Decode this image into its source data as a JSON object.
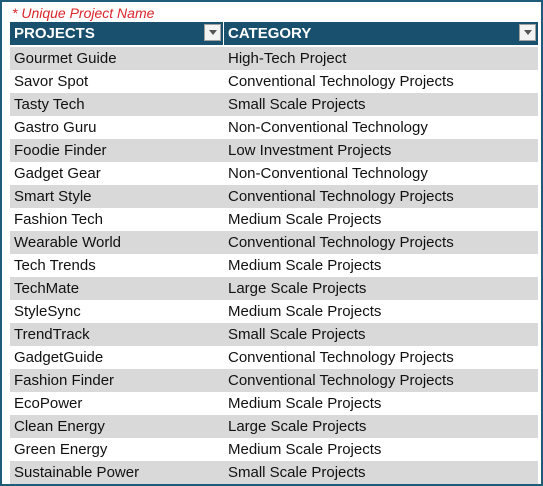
{
  "note": "* Unique Project Name",
  "headers": {
    "projects": "PROJECTS",
    "category": "CATEGORY"
  },
  "rows": [
    {
      "project": "Gourmet Guide",
      "category": "High-Tech Project"
    },
    {
      "project": "Savor Spot",
      "category": "Conventional Technology Projects"
    },
    {
      "project": "Tasty Tech",
      "category": "Small Scale Projects"
    },
    {
      "project": "Gastro Guru",
      "category": "Non-Conventional Technology"
    },
    {
      "project": "Foodie Finder",
      "category": "Low Investment Projects"
    },
    {
      "project": "Gadget Gear",
      "category": "Non-Conventional Technology"
    },
    {
      "project": "Smart Style",
      "category": "Conventional Technology Projects"
    },
    {
      "project": "Fashion Tech",
      "category": "Medium Scale Projects"
    },
    {
      "project": "Wearable World",
      "category": "Conventional Technology Projects"
    },
    {
      "project": "Tech Trends",
      "category": "Medium Scale Projects"
    },
    {
      "project": "TechMate",
      "category": "Large Scale Projects"
    },
    {
      "project": "StyleSync",
      "category": "Medium Scale Projects"
    },
    {
      "project": "TrendTrack",
      "category": "Small Scale Projects"
    },
    {
      "project": "GadgetGuide",
      "category": "Conventional Technology Projects"
    },
    {
      "project": "Fashion Finder",
      "category": "Conventional Technology Projects"
    },
    {
      "project": "EcoPower",
      "category": "Medium Scale Projects"
    },
    {
      "project": "Clean Energy",
      "category": "Large Scale Projects"
    },
    {
      "project": "Green Energy",
      "category": "Medium Scale Projects"
    },
    {
      "project": "Sustainable Power",
      "category": "Small Scale Projects"
    }
  ],
  "icons": {
    "filter": "filter-dropdown-icon"
  },
  "colors": {
    "header_bg": "#18506d",
    "note": "#d9262b",
    "band": "#d9d9d9",
    "border": "#1f5c7a"
  }
}
